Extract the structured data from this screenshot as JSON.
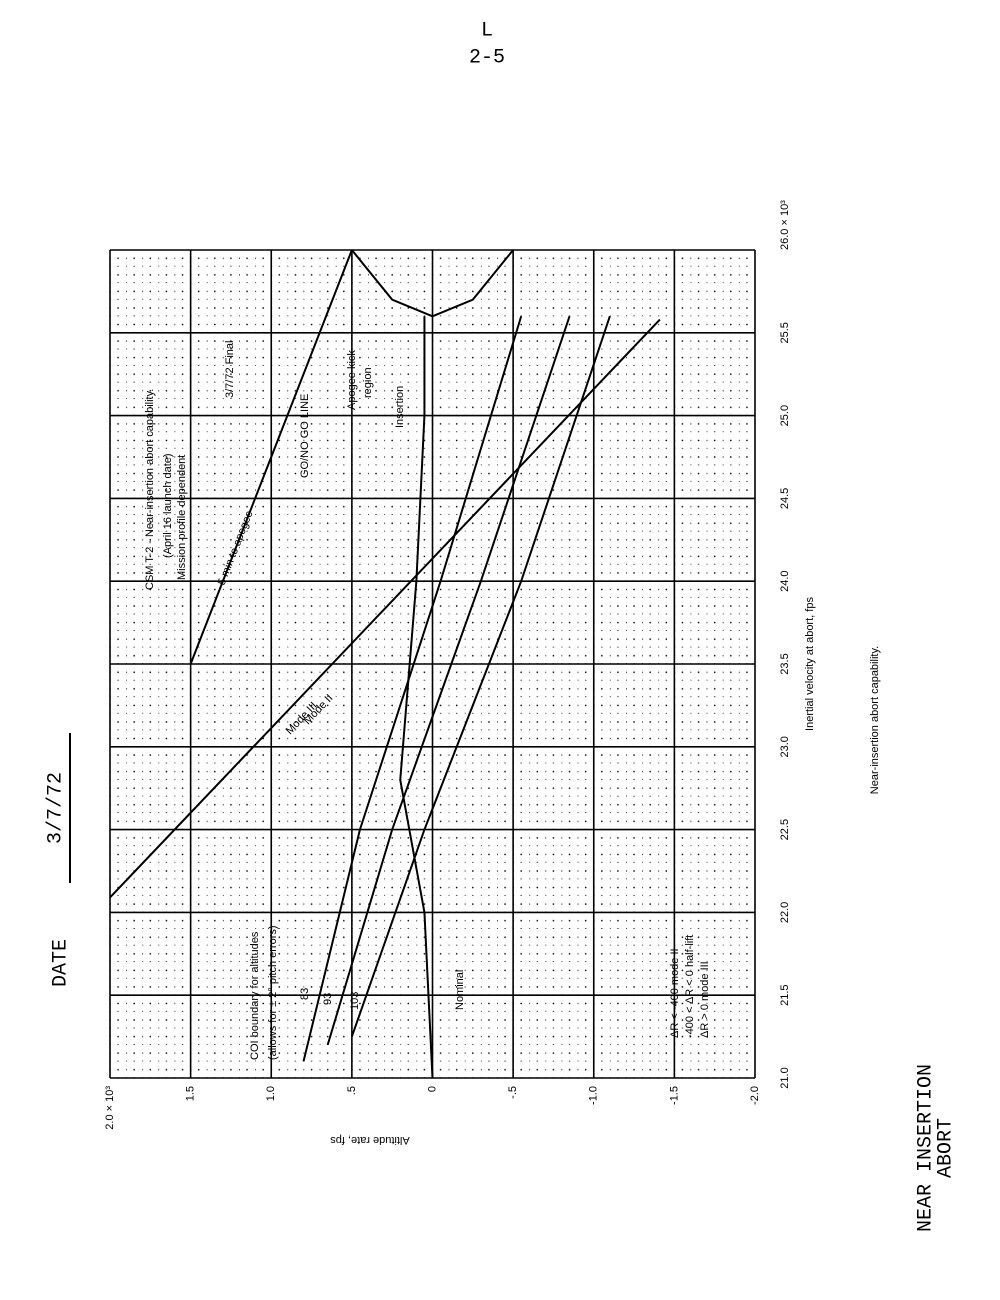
{
  "page": {
    "header": {
      "letter": "L",
      "page": "2-5"
    },
    "date": {
      "label": "DATE",
      "value": "3/7/72"
    },
    "caption": "Near-insertion abort capability.",
    "section": [
      "NEAR INSERTION",
      "ABORT"
    ]
  },
  "chart_data": {
    "type": "line",
    "xlabel": "Inertial velocity at abort, fps",
    "ylabel": "Altitude rate, fps",
    "xlim": [
      21.0,
      26.0
    ],
    "ylim": [
      -2.0,
      2.0
    ],
    "xticks": [
      {
        "value": 21.0,
        "label": "21.0"
      },
      21.5,
      {
        "value": 22.0,
        "label": "22.0"
      },
      22.5,
      {
        "value": 23.0,
        "label": "23.0"
      },
      23.5,
      {
        "value": 24.0,
        "label": "24.0"
      },
      24.5,
      {
        "value": 25.0,
        "label": "25.0"
      },
      25.5,
      {
        "value": 26.0,
        "label": "26.0 × 10³"
      }
    ],
    "yticks": [
      {
        "value": 2.0,
        "label": "2.0 × 10³"
      },
      1.5,
      {
        "value": 1.0,
        "label": "1.0"
      },
      {
        "value": 0.5,
        "label": ".5"
      },
      0,
      {
        "value": -0.5,
        "label": "-.5"
      },
      {
        "value": -1.0,
        "label": "-1.0"
      },
      -1.5,
      {
        "value": -2.0,
        "label": "-2.0"
      }
    ],
    "grid": true,
    "series": [
      {
        "name": "5 min to apogee",
        "color": "#000000",
        "x": [
          23.5,
          26.0
        ],
        "values": [
          1.5,
          0.5
        ]
      },
      {
        "color": "#000000",
        "x": [
          22.09,
          25.58
        ],
        "values": [
          2.0,
          -1.41
        ]
      },
      {
        "name": "83",
        "color": "#000000",
        "x": [
          21.1,
          22.5,
          24.0,
          25.6
        ],
        "values": [
          0.8,
          0.45,
          -0.05,
          -0.55
        ]
      },
      {
        "name": "93",
        "color": "#000000",
        "x": [
          21.2,
          22.5,
          24.0,
          25.6
        ],
        "values": [
          0.65,
          0.25,
          -0.3,
          -0.85
        ]
      },
      {
        "name": "103",
        "color": "#000000",
        "x": [
          21.25,
          22.5,
          24.0,
          25.6
        ],
        "values": [
          0.5,
          0.05,
          -0.55,
          -1.1
        ]
      },
      {
        "name": "Nominal",
        "color": "#000000",
        "x": [
          21.0,
          22.0,
          22.8,
          24.0,
          25.0,
          25.6
        ],
        "values": [
          0.0,
          0.05,
          0.2,
          0.1,
          0.05,
          0.05
        ]
      },
      {
        "name": "GO/NO GO LINE",
        "color": "#000000",
        "x": [
          26.0,
          25.7,
          25.6,
          25.7,
          26.0
        ],
        "values": [
          0.5,
          0.25,
          0.0,
          -0.25,
          -0.5
        ]
      }
    ],
    "annotations": [
      "CSM T-2 - Near-insertion abort capability.",
      "(April 16 launch date)",
      "Mission profile dependent",
      "3/7/72   Final",
      "Apogee kick",
      "region",
      "Insertion",
      "Mode III",
      "Mode II",
      "COI boundary for altitudes",
      "(allows for ± 2° pitch errors)",
      "ΔR < -400 mode II",
      "-400 < ΔR < 0 half-lift",
      "ΔR > 0 mode III"
    ]
  }
}
